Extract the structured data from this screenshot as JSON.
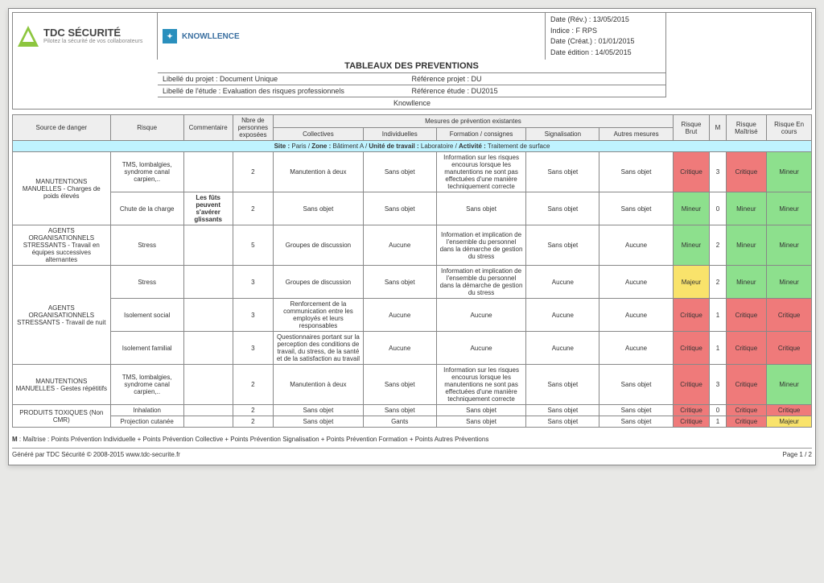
{
  "logo": {
    "title": "TDC SÉCURITÉ",
    "subtitle": "Pilotez la sécurité de vos collaborateurs"
  },
  "header": {
    "title": "TABLEAUX DES PREVENTIONS",
    "project_label": "Libellé du projet : Document Unique",
    "project_ref": "Référence projet : DU",
    "study_label": "Libellé de l'étude : Evaluation des risques professionnels",
    "study_ref": "Référence étude : DU2015",
    "company": "Knowllence",
    "kn_brand": "KNOWLLENCE"
  },
  "dates": {
    "rev": "Date (Rév.) : 13/05/2015",
    "indice": "Indice : F RPS",
    "creat": "Date (Créat.) : 01/01/2015",
    "edition": "Date édition : 14/05/2015"
  },
  "columns": {
    "source": "Source de danger",
    "risque": "Risque",
    "commentaire": "Commentaire",
    "nbr": "Nbre de personnes exposées",
    "mesures": "Mesures de prévention existantes",
    "collectives": "Collectives",
    "individuelles": "Individuelles",
    "formation": "Formation / consignes",
    "signalisation": "Signalisation",
    "autres": "Autres mesures",
    "brut": "Risque Brut",
    "m": "M",
    "maitrise": "Risque Maîtrisé",
    "encours": "Risque En cours"
  },
  "siterow": "Site : Paris / Zone : Bâtiment A / Unité de travail : Laboratoire / Activité : Traitement de surface",
  "rows": [
    {
      "source": "MANUTENTIONS MANUELLES - Charges de poids élevés",
      "risque": "TMS, lombalgies, syndrome canal carpien,..",
      "commentaire": "",
      "nbr": "2",
      "collectives": "Manutention à deux",
      "individuelles": "Sans objet",
      "formation": "Information sur les risques encourus lorsque les manutentions ne sont pas effectuées d'une manière techniquement correcte",
      "signalisation": "Sans objet",
      "autres": "Sans objet",
      "brut": "Critique",
      "brut_c": "c-critique",
      "m": "3",
      "maitrise": "Critique",
      "maitrise_c": "c-critique",
      "encours": "Mineur",
      "encours_c": "c-mineur",
      "src_rs": 2
    },
    {
      "source": "",
      "risque": "Chute de la charge",
      "commentaire": "Les fûts peuvent s'avérer glissants",
      "nbr": "2",
      "collectives": "Sans objet",
      "individuelles": "Sans objet",
      "formation": "Sans objet",
      "signalisation": "Sans objet",
      "autres": "Sans objet",
      "brut": "Mineur",
      "brut_c": "c-mineur",
      "m": "0",
      "maitrise": "Mineur",
      "maitrise_c": "c-mineur",
      "encours": "Mineur",
      "encours_c": "c-mineur"
    },
    {
      "source": "AGENTS ORGANISATIONNELS STRESSANTS - Travail en équipes successives alternantes",
      "risque": "Stress",
      "commentaire": "",
      "nbr": "5",
      "collectives": "Groupes de discussion",
      "individuelles": "Aucune",
      "formation": "Information et implication de l'ensemble du personnel dans la démarche de gestion du stress",
      "signalisation": "Sans objet",
      "autres": "Aucune",
      "brut": "Mineur",
      "brut_c": "c-mineur",
      "m": "2",
      "maitrise": "Mineur",
      "maitrise_c": "c-mineur",
      "encours": "Mineur",
      "encours_c": "c-mineur",
      "src_rs": 1
    },
    {
      "source": "AGENTS ORGANISATIONNELS STRESSANTS - Travail de nuit",
      "risque": "Stress",
      "commentaire": "",
      "nbr": "3",
      "collectives": "Groupes de discussion",
      "individuelles": "Sans objet",
      "formation": "Information et implication de l'ensemble du personnel dans la démarche de gestion du stress",
      "signalisation": "Aucune",
      "autres": "Aucune",
      "brut": "Majeur",
      "brut_c": "c-majeur",
      "m": "2",
      "maitrise": "Mineur",
      "maitrise_c": "c-mineur",
      "encours": "Mineur",
      "encours_c": "c-mineur",
      "src_rs": 3
    },
    {
      "source": "",
      "risque": "Isolement social",
      "commentaire": "",
      "nbr": "3",
      "collectives": "Renforcement de la communication entre les employés et leurs responsables",
      "individuelles": "Aucune",
      "formation": "Aucune",
      "signalisation": "Aucune",
      "autres": "Aucune",
      "brut": "Critique",
      "brut_c": "c-critique",
      "m": "1",
      "maitrise": "Critique",
      "maitrise_c": "c-critique",
      "encours": "Critique",
      "encours_c": "c-critique"
    },
    {
      "source": "",
      "risque": "Isolement familial",
      "commentaire": "",
      "nbr": "3",
      "collectives": "Questionnaires portant sur la perception des conditions de travail, du stress, de la santé et de la satisfaction au travail",
      "individuelles": "Aucune",
      "formation": "Aucune",
      "signalisation": "Aucune",
      "autres": "Aucune",
      "brut": "Critique",
      "brut_c": "c-critique",
      "m": "1",
      "maitrise": "Critique",
      "maitrise_c": "c-critique",
      "encours": "Critique",
      "encours_c": "c-critique"
    },
    {
      "source": "MANUTENTIONS MANUELLES - Gestes répétitifs",
      "risque": "TMS, lombalgies, syndrome canal carpien,..",
      "commentaire": "",
      "nbr": "2",
      "collectives": "Manutention à deux",
      "individuelles": "Sans objet",
      "formation": "Information sur les risques encourus lorsque les manutentions ne sont pas effectuées d'une manière techniquement correcte",
      "signalisation": "Sans objet",
      "autres": "Sans objet",
      "brut": "Critique",
      "brut_c": "c-critique",
      "m": "3",
      "maitrise": "Critique",
      "maitrise_c": "c-critique",
      "encours": "Mineur",
      "encours_c": "c-mineur",
      "src_rs": 1
    },
    {
      "source": "PRODUITS TOXIQUES (Non CMR)",
      "risque": "Inhalation",
      "commentaire": "",
      "nbr": "2",
      "collectives": "Sans objet",
      "individuelles": "Sans objet",
      "formation": "Sans objet",
      "signalisation": "Sans objet",
      "autres": "Sans objet",
      "brut": "Critique",
      "brut_c": "c-critique",
      "m": "0",
      "maitrise": "Critique",
      "maitrise_c": "c-critique",
      "encours": "Critique",
      "encours_c": "c-critique",
      "src_rs": 2
    },
    {
      "source": "",
      "risque": "Projection cutanée",
      "commentaire": "",
      "nbr": "2",
      "collectives": "Sans objet",
      "individuelles": "Gants",
      "formation": "Sans objet",
      "signalisation": "Sans objet",
      "autres": "Sans objet",
      "brut": "Critique",
      "brut_c": "c-critique",
      "m": "1",
      "maitrise": "Critique",
      "maitrise_c": "c-critique",
      "encours": "Majeur",
      "encours_c": "c-majeur"
    }
  ],
  "footnote": "M : Maîtrise : Points Prévention Individuelle + Points Prévention Collective + Points Prévention Signalisation + Points Prévention Formation + Points Autres Préventions",
  "generated": "Généré par TDC Sécurité © 2008-2015   www.tdc-securite.fr",
  "page": "Page   1 / 2",
  "colwidths": {
    "source": 120,
    "risque": 90,
    "commentaire": 60,
    "nbr": 50,
    "collectives": 110,
    "individuelles": 90,
    "formation": 110,
    "signalisation": 90,
    "autres": 90,
    "brut": 45,
    "m": 20,
    "maitrise": 50,
    "encours": 55
  },
  "colors": {
    "header_bg": "#eeeeee",
    "site_bg": "#bff3ff",
    "critique": "#ef7a7a",
    "mineur": "#8de08d",
    "majeur": "#f9e36b",
    "border": "#888888"
  }
}
